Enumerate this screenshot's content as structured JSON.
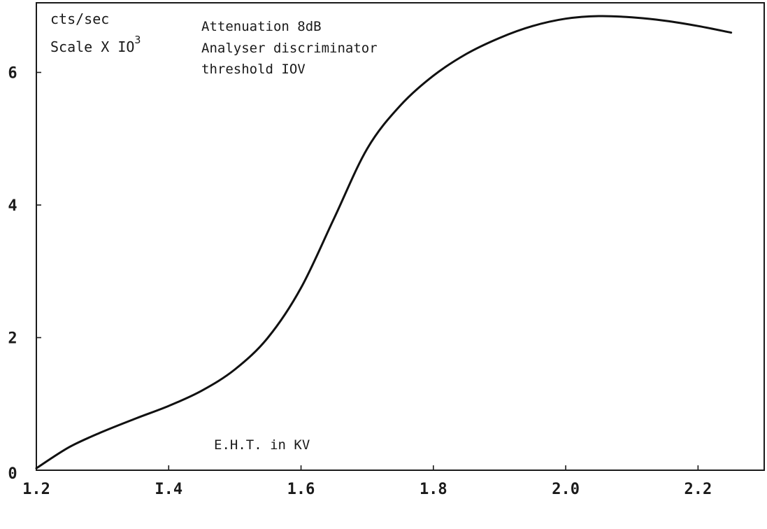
{
  "chart_data": {
    "type": "line",
    "title": "",
    "xlabel": "E.H.T. in KV",
    "ylabel_line1": "cts/sec",
    "ylabel_line2": "Scale X IO",
    "ylabel_exponent": "3",
    "annotations": [
      "Attenuation 8dB",
      "Analyser discriminator",
      "threshold IOV"
    ],
    "xlim": [
      1.2,
      2.3
    ],
    "ylim": [
      0,
      7.05
    ],
    "x_ticks": [
      {
        "value": 1.2,
        "label": "1.2"
      },
      {
        "value": 1.4,
        "label": "I.4"
      },
      {
        "value": 1.6,
        "label": "1.6"
      },
      {
        "value": 1.8,
        "label": "1.8"
      },
      {
        "value": 2.0,
        "label": "2.0"
      },
      {
        "value": 2.2,
        "label": "2.2"
      }
    ],
    "y_ticks": [
      {
        "value": 0,
        "label": "0"
      },
      {
        "value": 2,
        "label": "2"
      },
      {
        "value": 4,
        "label": "4"
      },
      {
        "value": 6,
        "label": "6"
      }
    ],
    "grid": false,
    "series": [
      {
        "x": [
          1.2,
          1.25,
          1.3,
          1.35,
          1.4,
          1.45,
          1.5,
          1.55,
          1.6,
          1.65,
          1.7,
          1.75,
          1.8,
          1.85,
          1.9,
          1.95,
          2.0,
          2.05,
          2.1,
          2.15,
          2.2,
          2.25
        ],
        "y": [
          0.03,
          0.35,
          0.58,
          0.78,
          0.97,
          1.2,
          1.52,
          2.0,
          2.75,
          3.8,
          4.85,
          5.5,
          5.95,
          6.28,
          6.52,
          6.7,
          6.81,
          6.85,
          6.83,
          6.78,
          6.7,
          6.6
        ]
      }
    ]
  }
}
